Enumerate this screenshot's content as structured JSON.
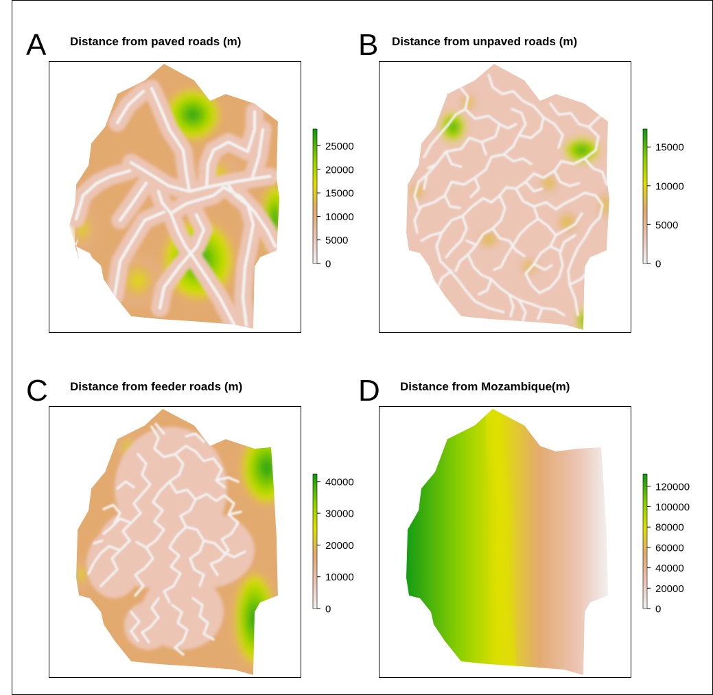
{
  "panels": [
    {
      "letter": "A",
      "title": "Distance from paved roads (m)",
      "colorbar": {
        "ticks": [
          "0",
          "5000",
          "10000",
          "15000",
          "20000",
          "25000"
        ]
      },
      "pattern": "paved"
    },
    {
      "letter": "B",
      "title": "Distance from unpaved roads (m)",
      "colorbar": {
        "ticks": [
          "0",
          "5000",
          "10000",
          "15000"
        ]
      },
      "pattern": "unpaved"
    },
    {
      "letter": "C",
      "title": "Distance from feeder roads (m)",
      "colorbar": {
        "ticks": [
          "0",
          "10000",
          "20000",
          "30000",
          "40000"
        ]
      },
      "pattern": "feeder"
    },
    {
      "letter": "D",
      "title": "Distance from Mozambique(m)",
      "colorbar": {
        "ticks": [
          "0",
          "20000",
          "40000",
          "60000",
          "80000",
          "100000",
          "120000"
        ]
      },
      "pattern": "gradient"
    }
  ],
  "colors": {
    "low": "#f2f2f2",
    "pink": "#ecc5b5",
    "tan": "#e3aa70",
    "yellow": "#dfe000",
    "lime": "#8fd000",
    "green": "#0e9a14",
    "frame": "#000000"
  }
}
